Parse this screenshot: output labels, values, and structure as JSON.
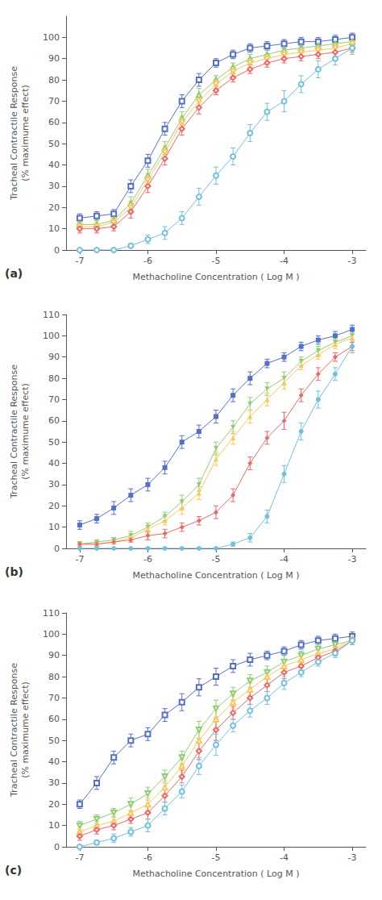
{
  "chart_data": [
    {
      "type": "line",
      "annotations": [
        "(a)"
      ],
      "xlabel": "Methacholine Concentration ( Log M )",
      "ylabel": "Tracheal Contractile Response\n(% maximume effect)",
      "xlim": [
        -7.2,
        -2.8
      ],
      "xticks": [
        -7,
        -6,
        -5,
        -4,
        -3
      ],
      "ylim": [
        0,
        110
      ],
      "yticks": [
        0,
        10,
        20,
        30,
        40,
        50,
        60,
        70,
        80,
        90,
        100
      ],
      "grid": false,
      "x": [
        -7,
        -6.75,
        -6.5,
        -6.25,
        -6,
        -5.75,
        -5.5,
        -5.25,
        -5,
        -4.75,
        -4.5,
        -4.25,
        -4,
        -3.75,
        -3.5,
        -3.25,
        -3
      ],
      "series": [
        {
          "marker": "open_square",
          "values": [
            15,
            16,
            17,
            30,
            42,
            57,
            70,
            80,
            88,
            92,
            95,
            96,
            97,
            98,
            98,
            99,
            100
          ],
          "yerr": [
            2,
            2,
            2,
            3,
            3,
            3,
            3,
            3,
            2,
            2,
            2,
            2,
            2,
            2,
            2,
            2,
            2
          ]
        },
        {
          "marker": "open_triangle",
          "values": [
            12,
            12,
            14,
            22,
            35,
            48,
            62,
            73,
            80,
            86,
            90,
            92,
            94,
            95,
            96,
            97,
            98
          ],
          "yerr": [
            2,
            2,
            2,
            3,
            3,
            3,
            3,
            3,
            2,
            2,
            2,
            2,
            2,
            2,
            2,
            2,
            2
          ]
        },
        {
          "marker": "open_triangle_down",
          "values": [
            11,
            11,
            13,
            20,
            33,
            46,
            60,
            70,
            78,
            84,
            88,
            90,
            92,
            93,
            94,
            95,
            97
          ],
          "yerr": [
            2,
            2,
            2,
            3,
            3,
            3,
            3,
            3,
            2,
            2,
            2,
            2,
            2,
            2,
            2,
            2,
            2
          ]
        },
        {
          "marker": "open_diamond",
          "values": [
            10,
            10,
            11,
            18,
            30,
            43,
            57,
            67,
            75,
            81,
            85,
            88,
            90,
            91,
            92,
            93,
            95
          ],
          "yerr": [
            2,
            2,
            2,
            3,
            3,
            3,
            3,
            3,
            2,
            2,
            2,
            2,
            2,
            2,
            2,
            2,
            2
          ]
        },
        {
          "marker": "open_circle",
          "values": [
            0,
            0,
            0,
            2,
            5,
            8,
            15,
            25,
            35,
            44,
            55,
            65,
            70,
            78,
            85,
            90,
            95
          ],
          "yerr": [
            0,
            0,
            0,
            1,
            2,
            3,
            3,
            4,
            4,
            4,
            4,
            4,
            5,
            4,
            4,
            3,
            3
          ]
        }
      ]
    },
    {
      "type": "line",
      "annotations": [
        "(b)"
      ],
      "xlabel": "Methacholine Concentration ( Log M )",
      "ylabel": "Tracheal Contractile Response\n(% maximume effect)",
      "xlim": [
        -7.2,
        -2.8
      ],
      "xticks": [
        -7,
        -6,
        -5,
        -4,
        -3
      ],
      "ylim": [
        0,
        110
      ],
      "yticks": [
        0,
        10,
        20,
        30,
        40,
        50,
        60,
        70,
        80,
        90,
        100,
        110
      ],
      "grid": false,
      "x": [
        -7,
        -6.75,
        -6.5,
        -6.25,
        -6,
        -5.75,
        -5.5,
        -5.25,
        -5,
        -4.75,
        -4.5,
        -4.25,
        -4,
        -3.75,
        -3.5,
        -3.25,
        -3
      ],
      "series": [
        {
          "marker": "square",
          "values": [
            11,
            14,
            19,
            25,
            30,
            38,
            50,
            55,
            62,
            72,
            80,
            87,
            90,
            95,
            98,
            100,
            103
          ],
          "yerr": [
            2,
            2,
            3,
            3,
            3,
            3,
            3,
            3,
            3,
            3,
            3,
            2,
            2,
            2,
            2,
            2,
            2
          ]
        },
        {
          "marker": "triangle_down",
          "values": [
            2,
            3,
            4,
            6,
            10,
            15,
            22,
            30,
            47,
            57,
            68,
            75,
            80,
            88,
            93,
            97,
            100
          ],
          "yerr": [
            1,
            1,
            1,
            2,
            2,
            2,
            3,
            3,
            3,
            3,
            3,
            3,
            3,
            2,
            2,
            2,
            2
          ]
        },
        {
          "marker": "triangle",
          "values": [
            2,
            2,
            3,
            5,
            9,
            13,
            19,
            26,
            42,
            52,
            62,
            70,
            78,
            86,
            91,
            96,
            99
          ],
          "yerr": [
            1,
            1,
            1,
            2,
            2,
            2,
            3,
            3,
            3,
            3,
            3,
            3,
            3,
            2,
            2,
            2,
            2
          ]
        },
        {
          "marker": "diamond",
          "values": [
            2,
            2,
            3,
            4,
            6,
            7,
            10,
            13,
            17,
            25,
            40,
            52,
            60,
            72,
            82,
            90,
            95
          ],
          "yerr": [
            1,
            1,
            1,
            1,
            2,
            2,
            2,
            2,
            3,
            3,
            3,
            3,
            4,
            3,
            3,
            2,
            2
          ]
        },
        {
          "marker": "circle",
          "values": [
            0,
            0,
            0,
            0,
            0,
            0,
            0,
            0,
            0,
            2,
            5,
            15,
            35,
            55,
            70,
            82,
            95
          ],
          "yerr": [
            0,
            0,
            0,
            0,
            0,
            0,
            0,
            0,
            0,
            1,
            2,
            3,
            4,
            4,
            4,
            3,
            3
          ]
        }
      ]
    },
    {
      "type": "line",
      "annotations": [
        "(c)"
      ],
      "xlabel": "Methacholine Concentration ( Log M )",
      "ylabel": "Tracheal Contractile Response\n(% maximume effect)",
      "xlim": [
        -7.2,
        -2.8
      ],
      "xticks": [
        -7,
        -6,
        -5,
        -4,
        -3
      ],
      "ylim": [
        0,
        110
      ],
      "yticks": [
        0,
        10,
        20,
        30,
        40,
        50,
        60,
        70,
        80,
        90,
        100,
        110
      ],
      "grid": false,
      "x": [
        -7,
        -6.75,
        -6.5,
        -6.25,
        -6,
        -5.75,
        -5.5,
        -5.25,
        -5,
        -4.75,
        -4.5,
        -4.25,
        -4,
        -3.75,
        -3.5,
        -3.25,
        -3
      ],
      "series": [
        {
          "marker": "open_square",
          "values": [
            20,
            30,
            42,
            50,
            53,
            62,
            68,
            75,
            80,
            85,
            88,
            90,
            92,
            95,
            97,
            98,
            99
          ],
          "yerr": [
            2,
            3,
            3,
            3,
            3,
            3,
            4,
            4,
            4,
            3,
            3,
            2,
            2,
            2,
            2,
            2,
            2
          ]
        },
        {
          "marker": "open_triangle_down",
          "values": [
            10,
            13,
            16,
            20,
            25,
            33,
            42,
            55,
            65,
            72,
            78,
            82,
            87,
            90,
            93,
            95,
            97
          ],
          "yerr": [
            2,
            2,
            2,
            3,
            3,
            3,
            3,
            4,
            4,
            3,
            3,
            3,
            3,
            2,
            2,
            2,
            2
          ]
        },
        {
          "marker": "open_triangle",
          "values": [
            7,
            10,
            12,
            16,
            20,
            28,
            38,
            50,
            60,
            68,
            74,
            80,
            85,
            88,
            91,
            93,
            98
          ],
          "yerr": [
            2,
            2,
            2,
            3,
            3,
            3,
            3,
            4,
            5,
            3,
            3,
            3,
            3,
            2,
            2,
            2,
            2
          ]
        },
        {
          "marker": "open_diamond",
          "values": [
            5,
            8,
            10,
            13,
            16,
            24,
            33,
            45,
            55,
            63,
            70,
            76,
            82,
            85,
            89,
            92,
            97
          ],
          "yerr": [
            2,
            2,
            2,
            2,
            3,
            3,
            3,
            4,
            5,
            3,
            3,
            3,
            3,
            2,
            2,
            2,
            2
          ]
        },
        {
          "marker": "open_circle",
          "values": [
            0,
            2,
            4,
            7,
            10,
            18,
            26,
            38,
            48,
            57,
            64,
            70,
            77,
            82,
            87,
            91,
            97
          ],
          "yerr": [
            0,
            1,
            2,
            2,
            3,
            3,
            3,
            4,
            5,
            3,
            3,
            3,
            3,
            2,
            2,
            2,
            2
          ]
        }
      ]
    }
  ]
}
